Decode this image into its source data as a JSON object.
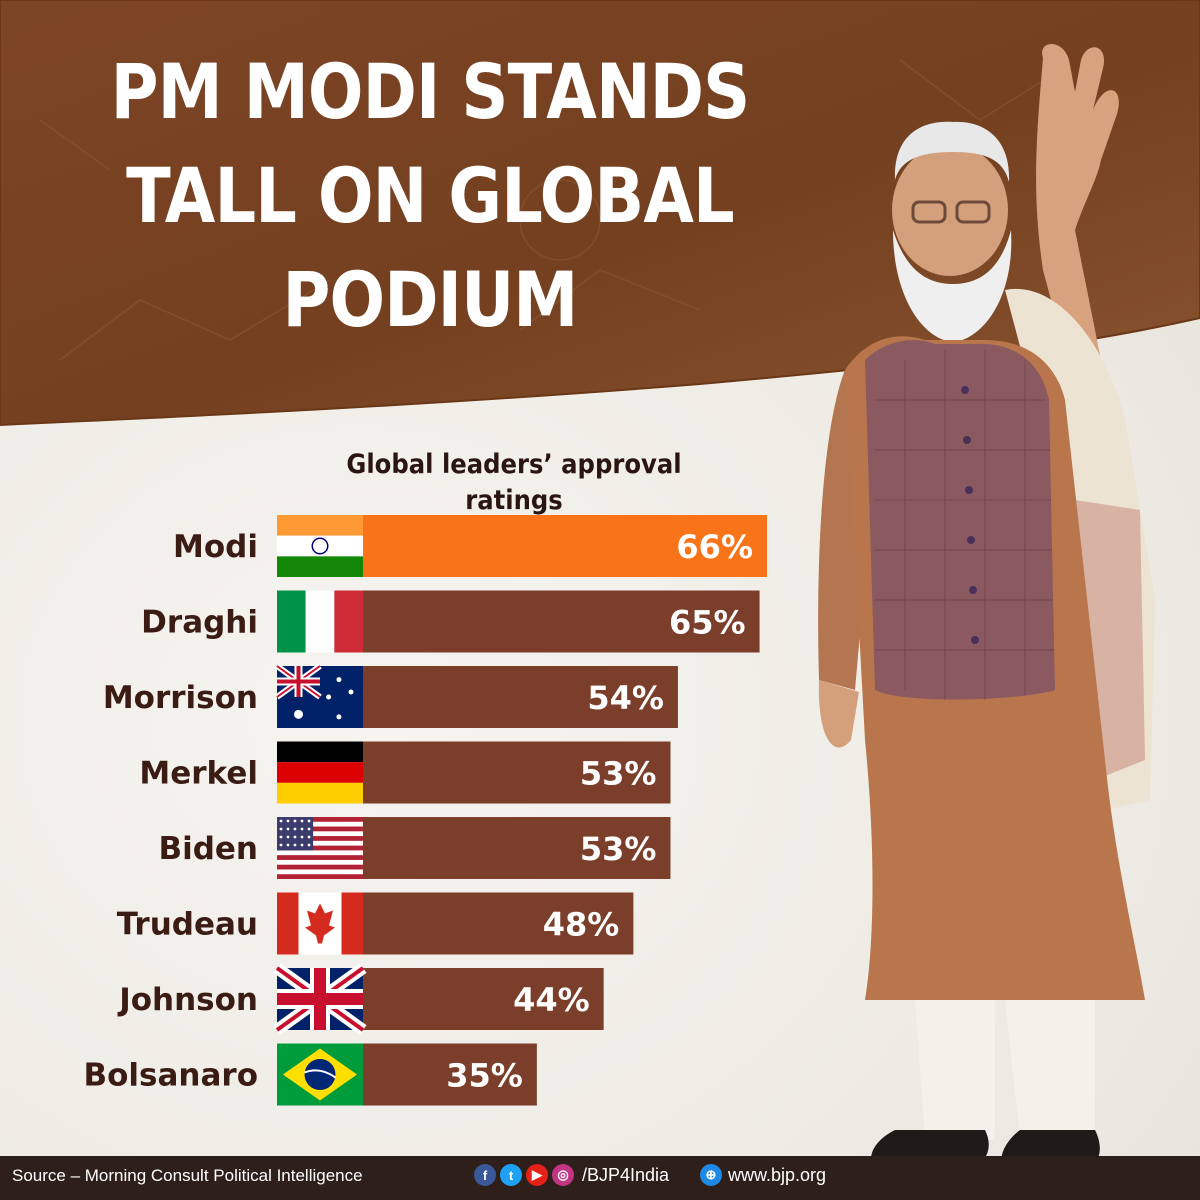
{
  "headline": {
    "line1": "PM MODI STANDS",
    "line2": "TALL ON GLOBAL",
    "line3": "PODIUM"
  },
  "colors": {
    "banner": "#7a4424",
    "bar": "#7a3e2a",
    "highlight_bar": "#f97419",
    "footer": "#2e1f1a"
  },
  "chart_data": {
    "type": "bar",
    "orientation": "horizontal",
    "title": "Global leaders’ approval ratings",
    "unit": "%",
    "categories": [
      "Modi",
      "Draghi",
      "Morrison",
      "Merkel",
      "Biden",
      "Trudeau",
      "Johnson",
      "Bolsanaro"
    ],
    "values": [
      66,
      65,
      54,
      53,
      53,
      48,
      44,
      35
    ],
    "labels": [
      "66%",
      "65%",
      "54%",
      "53%",
      "53%",
      "48%",
      "44%",
      "35%"
    ],
    "flags": [
      "india-flag",
      "italy-flag",
      "australia-flag",
      "germany-flag",
      "usa-flag",
      "canada-flag",
      "uk-flag",
      "brazil-flag"
    ],
    "highlight": "Modi",
    "legend": "none",
    "grid": false
  },
  "footer": {
    "source": "Source – Morning Consult Political Intelligence",
    "icons": [
      "facebook-icon",
      "twitter-icon",
      "youtube-icon",
      "instagram-icon"
    ],
    "handle": "/BJP4India",
    "website": "www.bjp.org"
  }
}
